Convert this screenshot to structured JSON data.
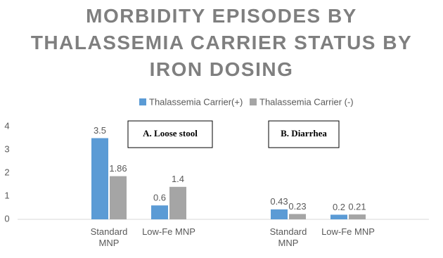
{
  "chart_data": {
    "type": "bar",
    "title": "MORBIDITY EPISODES BY THALASSEMIA CARRIER STATUS BY IRON DOSING",
    "categories": [
      "Standard MNP",
      "Low-Fe MNP",
      "Standard MNP",
      "Low-Fe MNP"
    ],
    "series": [
      {
        "name": "Thalassemia Carrier(+)",
        "color": "#5b9bd5",
        "values": [
          3.5,
          0.6,
          0.43,
          0.2
        ]
      },
      {
        "name": "Thalassemia Carrier (-)",
        "color": "#a5a5a5",
        "values": [
          1.86,
          1.4,
          0.23,
          0.21
        ]
      }
    ],
    "annotations": [
      "A. Loose stool",
      "B. Diarrhea"
    ],
    "ylim": [
      0,
      4
    ],
    "yticks": [
      0,
      1,
      2,
      3,
      4
    ],
    "grid": false,
    "legend": "top"
  }
}
